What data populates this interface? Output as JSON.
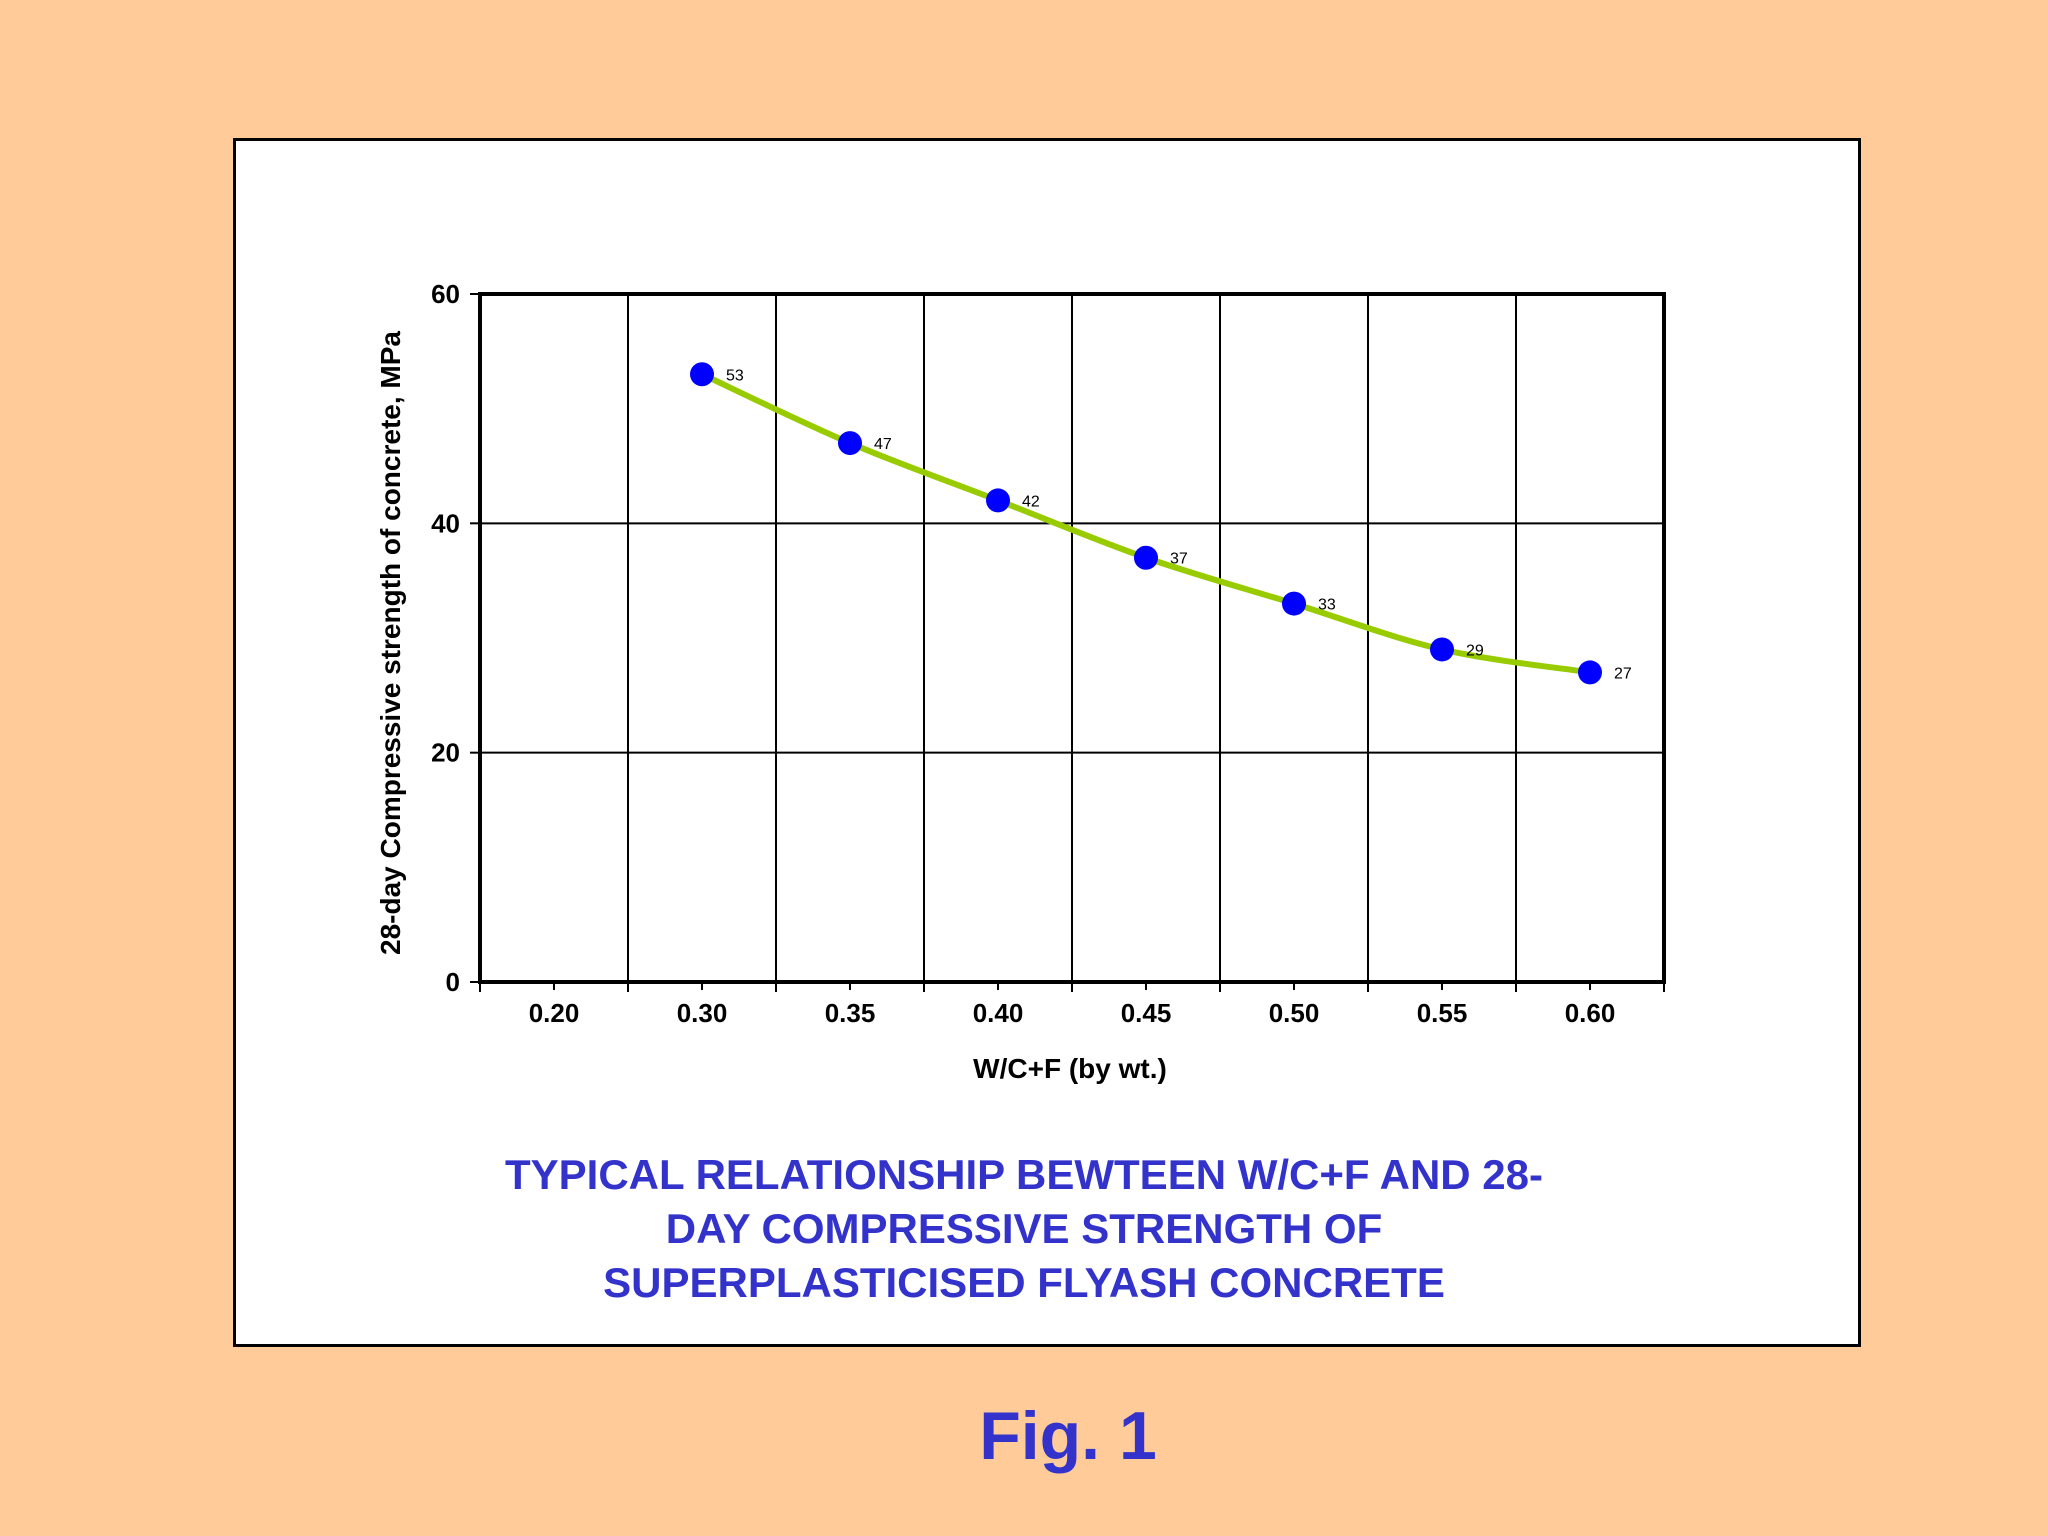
{
  "figure_label": "Fig. 1",
  "colors": {
    "background": "#FFCC99",
    "frame": "#FFFFFF",
    "line": "#99CC00",
    "marker": "#0000FF",
    "caption": "#3333CC"
  },
  "chart_data": {
    "type": "line",
    "title_lines": [
      "TYPICAL RELATIONSHIP BEWTEEN W/C+F AND 28-",
      "DAY COMPRESSIVE STRENGTH OF",
      "SUPERPLASTICISED FLYASH CONCRETE"
    ],
    "xlabel": "W/C+F (by wt.)",
    "ylabel": "28-day Compressive strength of concrete, MPa",
    "x_ticks": [
      "0.20",
      "0.30",
      "0.35",
      "0.40",
      "0.45",
      "0.50",
      "0.55",
      "0.60"
    ],
    "y_ticks": [
      "0",
      "20",
      "40",
      "60"
    ],
    "ylim": [
      0,
      60
    ],
    "grid": true,
    "series": [
      {
        "x": [
          "0.30",
          "0.35",
          "0.40",
          "0.45",
          "0.50",
          "0.55",
          "0.60"
        ],
        "values": [
          53,
          47,
          42,
          37,
          33,
          29,
          27
        ],
        "data_labels": [
          "53",
          "47",
          "42",
          "37",
          "33",
          "29",
          "27"
        ]
      }
    ]
  }
}
